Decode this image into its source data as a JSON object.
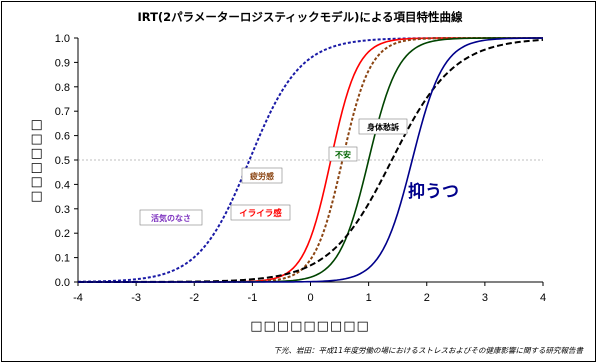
{
  "chart_data": {
    "type": "line",
    "title": "IRT(2パラメーターロジスティックモデル)による項目特性曲線",
    "xlabel": "□□□□□□□□□",
    "ylabel": "□□□□□□",
    "xlim": [
      -4,
      4
    ],
    "ylim": [
      0,
      1
    ],
    "x_ticks": [
      -4,
      -3,
      -2,
      -1,
      0,
      1,
      2,
      3,
      4
    ],
    "y_ticks": [
      0.0,
      0.1,
      0.2,
      0.3,
      0.4,
      0.5,
      0.6,
      0.7,
      0.8,
      0.9,
      1.0
    ],
    "reference_line": 0.5,
    "grid": false,
    "series": [
      {
        "name": "活気のなさ",
        "color": "#1a1aa6",
        "dash": "dotted",
        "a": 1.35,
        "b": -1.05
      },
      {
        "name": "イライラ感",
        "color": "#ff0000",
        "dash": "solid",
        "a": 2.55,
        "b": 0.35
      },
      {
        "name": "疲労感",
        "color": "#8b4513",
        "dash": "dotted",
        "a": 2.45,
        "b": 0.55
      },
      {
        "name": "不安",
        "color": "#004400",
        "dash": "solid",
        "a": 2.3,
        "b": 1.0
      },
      {
        "name": "身体愁訴",
        "color": "#000000",
        "dash": "dashed",
        "a": 1.1,
        "b": 1.4
      },
      {
        "name": "抑うつ",
        "color": "#00008b",
        "dash": "solid",
        "a": 2.2,
        "b": 1.75
      }
    ],
    "labels": {
      "kiryoku": "活気のなさ",
      "iraira": "イライラ感",
      "hirou": "疲労感",
      "fuan": "不安",
      "shintai": "身体愁訴",
      "yokuutsu": "抑うつ"
    }
  },
  "source_note": "下光、岩田：平成11年度労働の場におけるストレスおよびその健康影響に関する研究報告書"
}
